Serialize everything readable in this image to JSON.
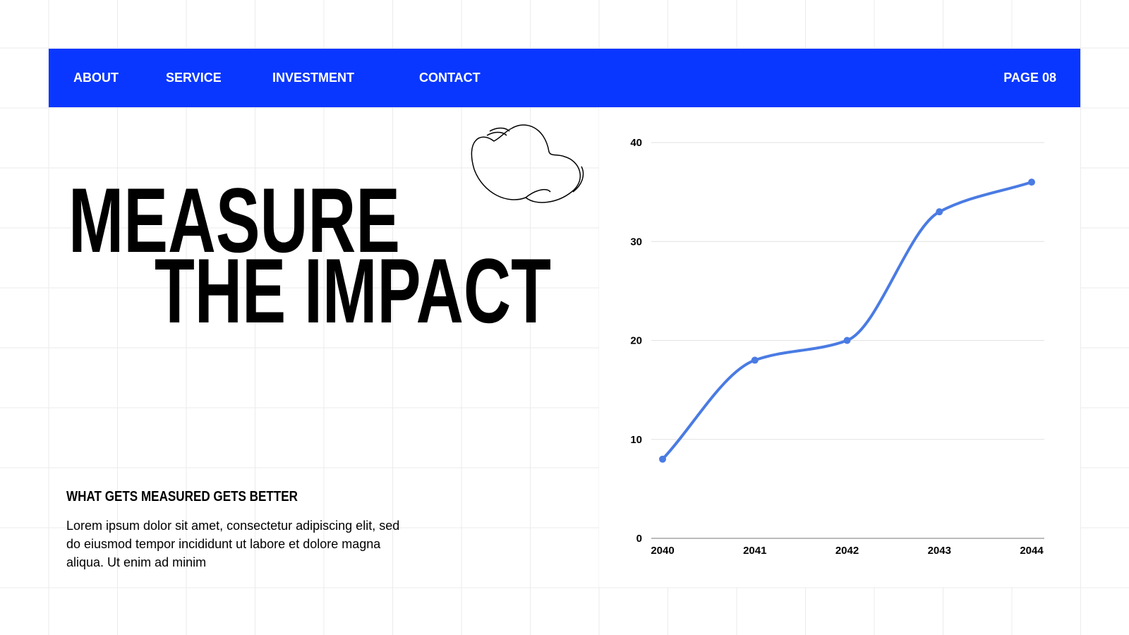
{
  "nav": {
    "items": [
      "ABOUT",
      "SERVICE",
      "INVESTMENT",
      "CONTACT"
    ],
    "page": "PAGE 08"
  },
  "hero": {
    "lines": [
      "MEASURE",
      "THE IMPACT"
    ]
  },
  "section": {
    "heading": "WHAT GETS MEASURED GETS BETTER",
    "body": [
      "Lorem ipsum dolor sit amet, consectetur adipiscing elit, sed",
      "do eiusmod tempor incididunt ut labore et dolore magna",
      "aliqua. Ut enim ad minim"
    ]
  },
  "chart_data": {
    "type": "line",
    "categories": [
      "2040",
      "2041",
      "2042",
      "2043",
      "2044"
    ],
    "values": [
      8,
      18,
      20,
      33,
      36
    ],
    "color": "#4a7be3",
    "ylim": [
      0,
      40
    ],
    "yticks": [
      0,
      10,
      20,
      30,
      40
    ],
    "grid": true
  }
}
